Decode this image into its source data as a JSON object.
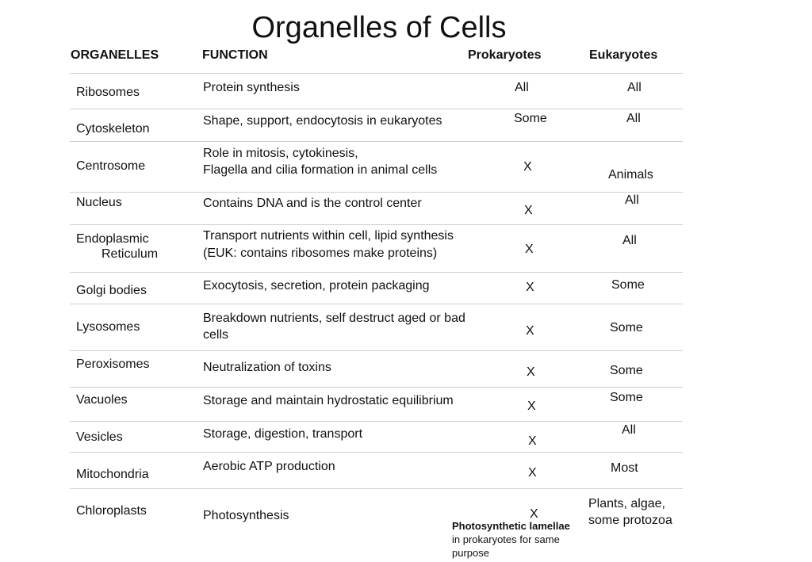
{
  "title": "Organelles of Cells",
  "headers": {
    "organelles": "ORGANELLES",
    "function": "FUNCTION",
    "prokaryotes": "Prokaryotes",
    "eukaryotes": "Eukaryotes"
  },
  "rows": [
    {
      "organelle": "Ribosomes",
      "function": "Protein synthesis",
      "prokaryotes": "All",
      "eukaryotes": "All"
    },
    {
      "organelle": "Cytoskeleton",
      "function": "Shape, support, endocytosis in eukaryotes",
      "prokaryotes": "Some",
      "eukaryotes": "All"
    },
    {
      "organelle": "Centrosome",
      "function_lines": [
        "Role in mitosis, cytokinesis,",
        "Flagella and cilia formation in animal cells"
      ],
      "prokaryotes": "X",
      "eukaryotes": "Animals"
    },
    {
      "organelle": "Nucleus",
      "function": "Contains DNA and is the control center",
      "prokaryotes": "X",
      "eukaryotes": "All"
    },
    {
      "organelle_lines": [
        "Endoplasmic",
        "Reticulum"
      ],
      "function_lines": [
        "Transport nutrients within cell, lipid synthesis",
        "(EUK: contains ribosomes make proteins)"
      ],
      "prokaryotes": "X",
      "eukaryotes": "All"
    },
    {
      "organelle": "Golgi bodies",
      "function": "Exocytosis, secretion, protein packaging",
      "prokaryotes": "X",
      "eukaryotes": "Some"
    },
    {
      "organelle": "Lysosomes",
      "function_lines": [
        "Breakdown nutrients, self destruct aged or bad",
        "cells"
      ],
      "prokaryotes": "X",
      "eukaryotes": "Some"
    },
    {
      "organelle": "Peroxisomes",
      "function": "Neutralization of toxins",
      "prokaryotes": "X",
      "eukaryotes": "Some"
    },
    {
      "organelle": "Vacuoles",
      "function": "Storage and maintain hydrostatic equilibrium",
      "prokaryotes": "X",
      "eukaryotes": "Some"
    },
    {
      "organelle": "Vesicles",
      "function": "Storage, digestion, transport",
      "prokaryotes": "X",
      "eukaryotes": "All"
    },
    {
      "organelle": "Mitochondria",
      "function": "Aerobic ATP production",
      "prokaryotes": "X",
      "eukaryotes": "Most"
    },
    {
      "organelle": "Chloroplasts",
      "function": "Photosynthesis",
      "prokaryotes": "X",
      "eukaryotes_lines": [
        "Plants, algae,",
        "some protozoa"
      ]
    }
  ],
  "note": {
    "bold": "Photosynthetic lamellae",
    "lines": [
      "in prokaryotes for same",
      "purpose"
    ]
  }
}
